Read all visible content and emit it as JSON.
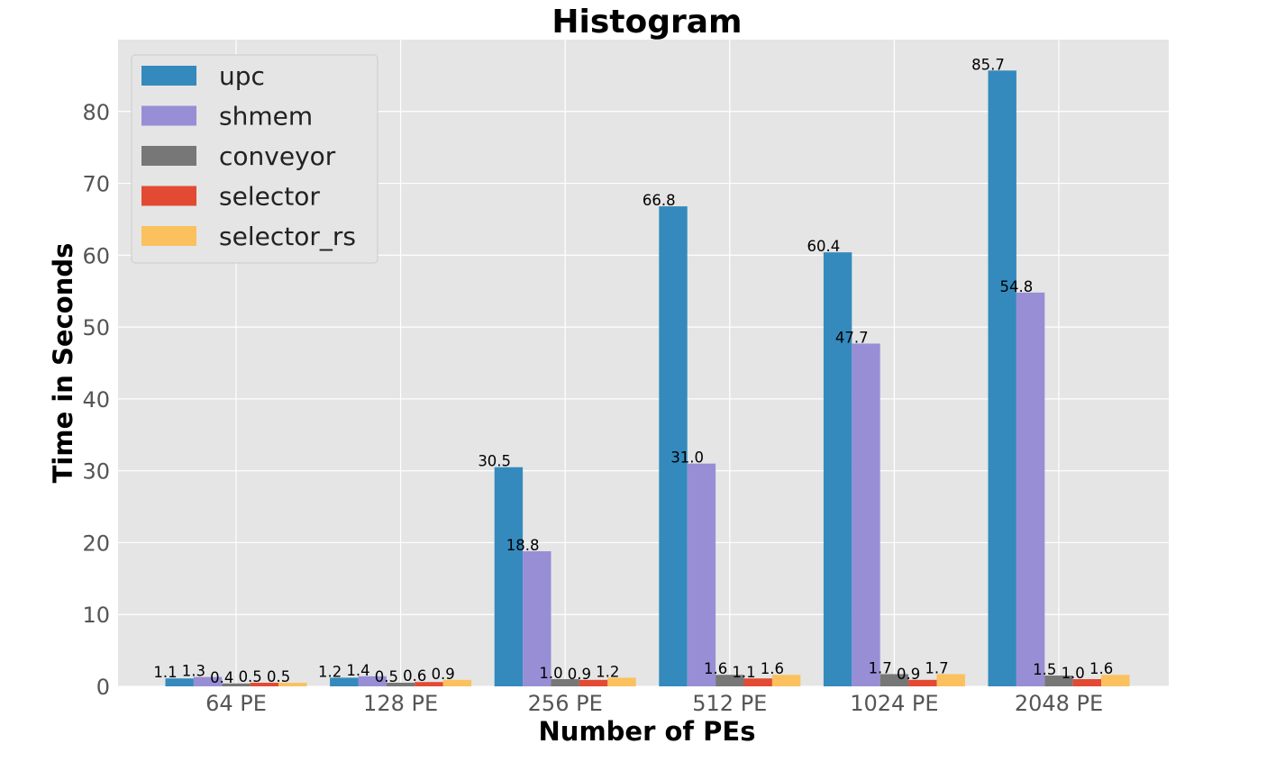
{
  "chart_data": {
    "type": "bar",
    "title": "Histogram",
    "xlabel": "Number of PEs",
    "ylabel": "Time in Seconds",
    "categories": [
      "64 PE",
      "128 PE",
      "256 PE",
      "512 PE",
      "1024 PE",
      "2048 PE"
    ],
    "ylim": [
      0,
      90
    ],
    "yticks": [
      0,
      10,
      20,
      30,
      40,
      50,
      60,
      70,
      80
    ],
    "grid": true,
    "legend_position": "top-left",
    "series": [
      {
        "name": "upc",
        "color": "#348ABD",
        "values": [
          1.1,
          1.2,
          30.5,
          66.8,
          60.4,
          85.7
        ],
        "labels": [
          "1.1",
          "1.2",
          "30.5",
          "66.8",
          "60.4",
          "85.7"
        ]
      },
      {
        "name": "shmem",
        "color": "#988ED5",
        "values": [
          1.3,
          1.4,
          18.8,
          31.0,
          47.7,
          54.8
        ],
        "labels": [
          "1.3",
          "1.4",
          "18.8",
          "31.0",
          "47.7",
          "54.8"
        ]
      },
      {
        "name": "conveyor",
        "color": "#777777",
        "values": [
          0.4,
          0.5,
          1.0,
          1.6,
          1.7,
          1.5
        ],
        "labels": [
          "0.4",
          "0.5",
          "1.0",
          "1.6",
          "1.7",
          "1.5"
        ]
      },
      {
        "name": "selector",
        "color": "#E24A33",
        "values": [
          0.5,
          0.6,
          0.9,
          1.1,
          0.9,
          1.0
        ],
        "labels": [
          "0.5",
          "0.6",
          "0.9",
          "1.1",
          "0.9",
          "1.0"
        ]
      },
      {
        "name": "selector_rs",
        "color": "#FBC15E",
        "values": [
          0.5,
          0.9,
          1.2,
          1.6,
          1.7,
          1.6
        ],
        "labels": [
          "0.5",
          "0.9",
          "1.2",
          "1.6",
          "1.7",
          "1.6"
        ]
      }
    ]
  }
}
